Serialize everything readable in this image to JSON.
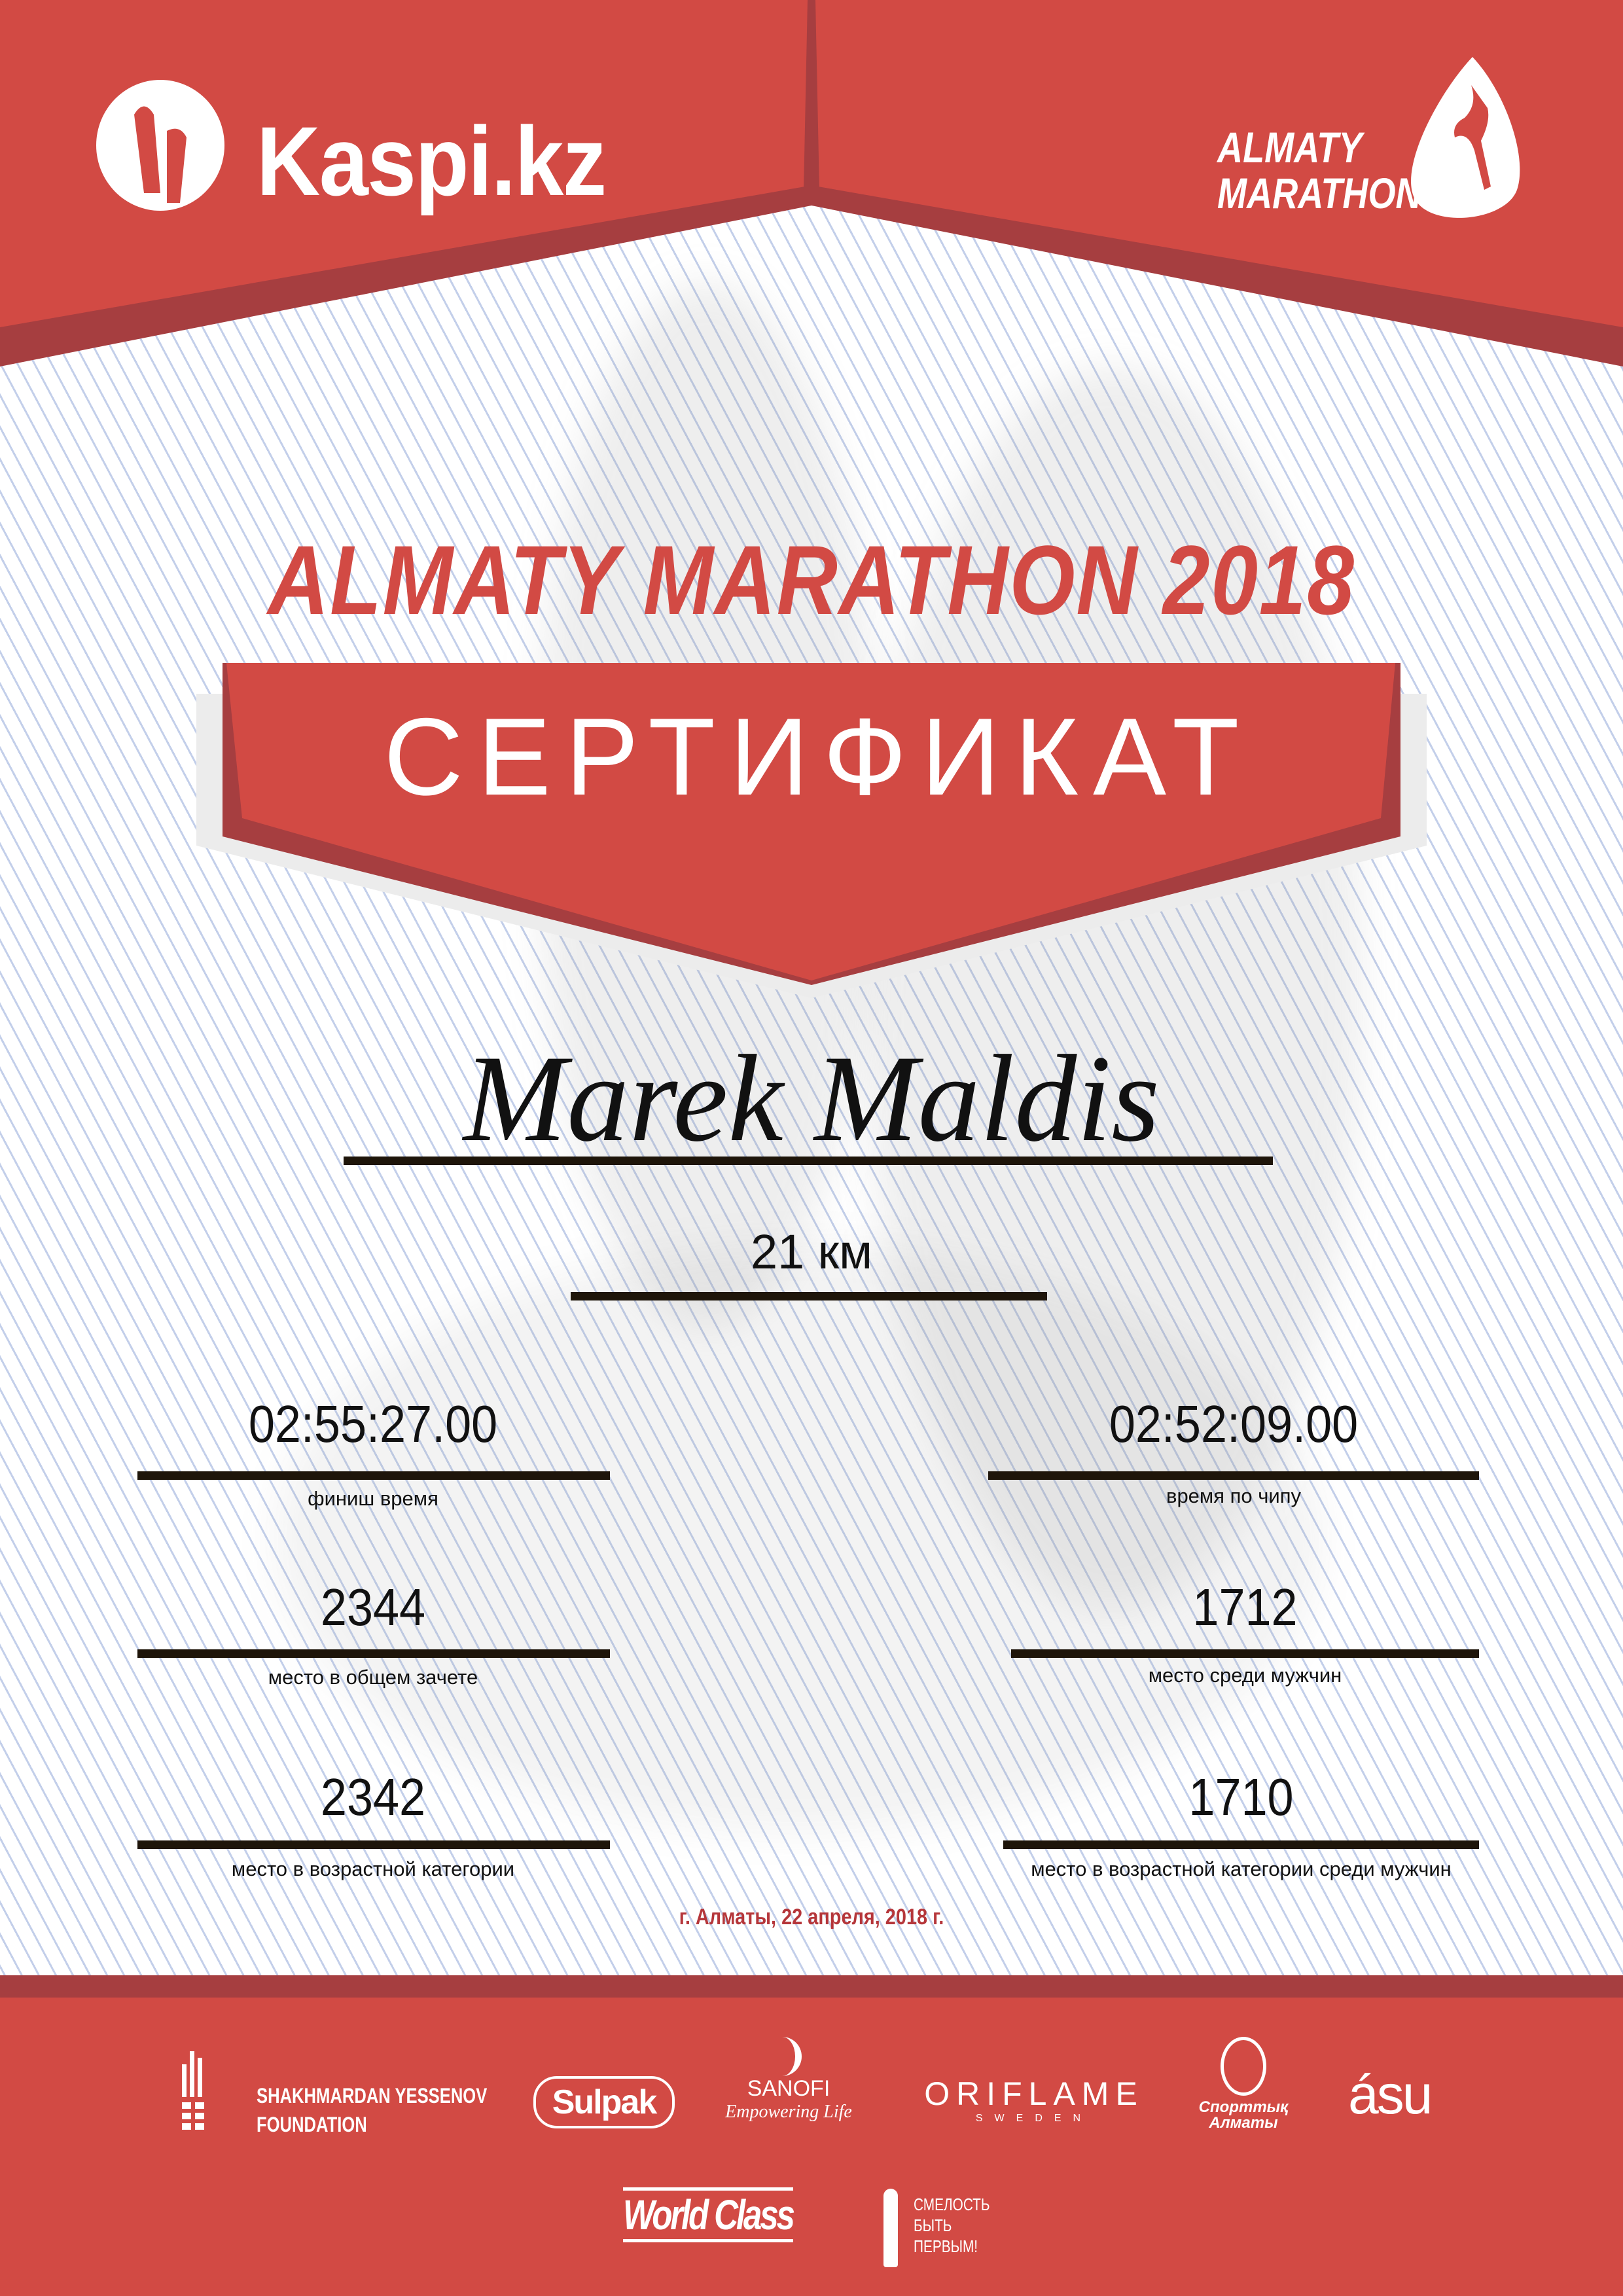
{
  "colors": {
    "brand_red": "#d24a44",
    "dark_red": "#a63e40",
    "rule": "#1e150a",
    "date_red": "#b5363a"
  },
  "header": {
    "left_logo": {
      "icon": "kaspi-figures-icon",
      "text": "Kaspi.kz"
    },
    "right_logo": {
      "icon": "runner-drop-icon",
      "line1": "ALMATY",
      "line2": "MARATHON"
    }
  },
  "title": "ALMATY MARATHON 2018",
  "banner": "СЕРТИФИКАТ",
  "participant": {
    "name": "Marek Maldis",
    "distance": "21 км"
  },
  "results": {
    "left": [
      {
        "value": "02:55:27.00",
        "label": "финиш время"
      },
      {
        "value": "2344",
        "label": "место в общем зачете"
      },
      {
        "value": "2342",
        "label": "место в возрастной категории"
      }
    ],
    "right": [
      {
        "value": "02:52:09.00",
        "label": "время по чипу"
      },
      {
        "value": "1712",
        "label": "место среди мужчин"
      },
      {
        "value": "1710",
        "label": "место в возрастной категории среди мужчин"
      }
    ]
  },
  "date": "г. Алматы, 22 апреля, 2018 г.",
  "sponsors": {
    "yessenov": {
      "line1": "SHAKHMARDAN YESSENOV",
      "line2": "FOUNDATION"
    },
    "sulpak": "Sulpak",
    "sanofi": {
      "name": "SANOFI",
      "tagline": "Empowering Life"
    },
    "oriflame": {
      "name": "ORIFLAME",
      "sub": "SWEDEN"
    },
    "sport_almaty": {
      "line1": "Спорттық",
      "line2": "Алматы"
    },
    "asu": "ásu",
    "worldclass": "World Class",
    "courage": {
      "line1": "СМЕЛОСТЬ",
      "line2": "БЫТЬ",
      "line3": "ПЕРВЫМ!"
    }
  }
}
